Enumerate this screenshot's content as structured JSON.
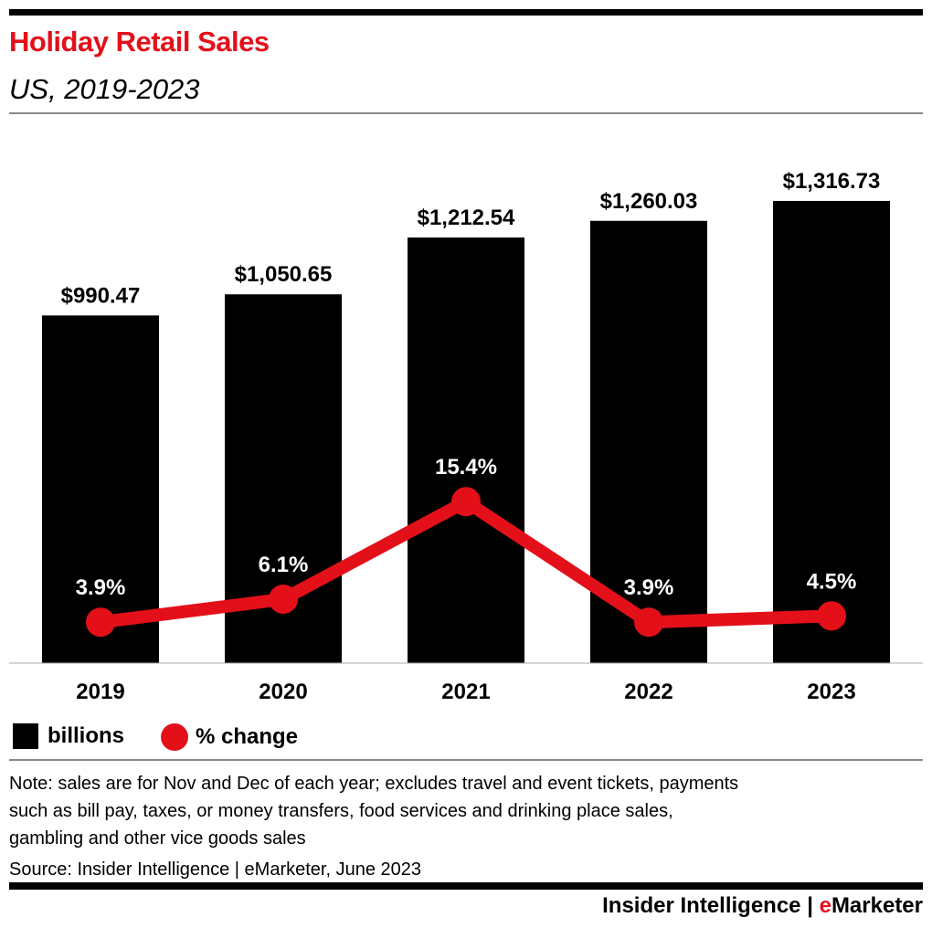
{
  "header": {
    "title": "Holiday Retail Sales",
    "subtitle": "US, 2019-2023"
  },
  "chart_data": {
    "type": "bar",
    "categories": [
      "2019",
      "2020",
      "2021",
      "2022",
      "2023"
    ],
    "series": [
      {
        "name": "billions",
        "type": "bar",
        "values": [
          990.47,
          1050.65,
          1212.54,
          1260.03,
          1316.73
        ],
        "labels": [
          "$990.47",
          "$1,050.65",
          "$1,212.54",
          "$1,260.03",
          "$1,316.73"
        ],
        "color": "#000000"
      },
      {
        "name": "% change",
        "type": "line",
        "values": [
          3.9,
          6.1,
          15.4,
          3.9,
          4.5
        ],
        "labels": [
          "3.9%",
          "6.1%",
          "15.4%",
          "3.9%",
          "4.5%"
        ],
        "color": "#e3101a"
      }
    ],
    "grid": false,
    "legend": "bottom-left"
  },
  "legend": {
    "bars": "billions",
    "line": "% change"
  },
  "footer": {
    "note_lines": [
      "Note: sales are for Nov and Dec of each year; excludes travel and event tickets, payments",
      "such as bill pay, taxes, or money transfers, food services and drinking place sales,",
      "gambling and other vice goods sales"
    ],
    "source": "Source: Insider Intelligence | eMarketer, June 2023",
    "brand_left": "Insider Intelligence | ",
    "brand_e": "e",
    "brand_right": "Marketer"
  }
}
